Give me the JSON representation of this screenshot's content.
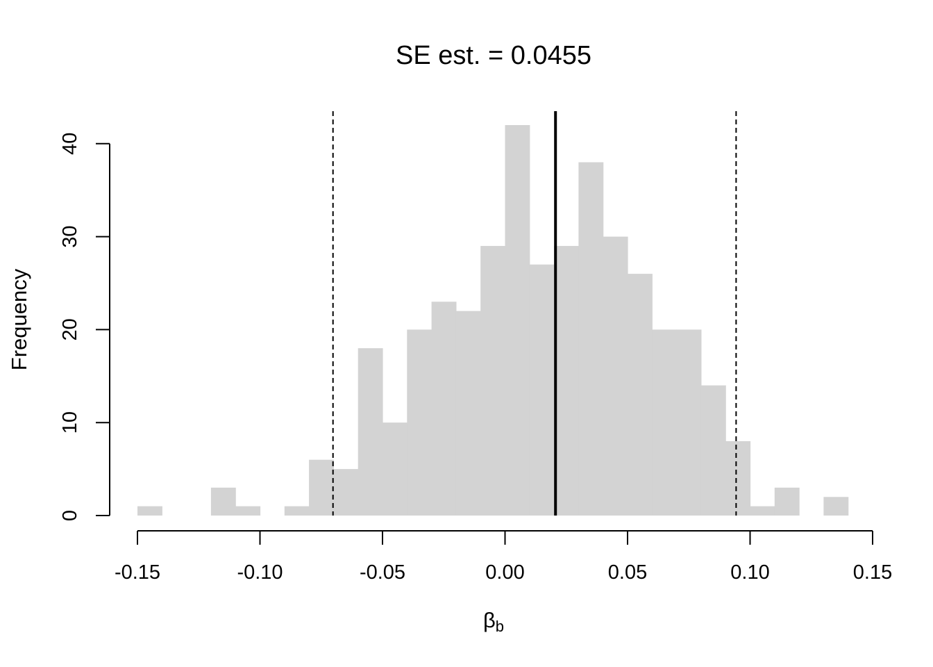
{
  "chart_data": {
    "type": "bar",
    "title": "SE est. = 0.0455",
    "xlabel_main": "β",
    "xlabel_sub": "b",
    "ylabel": "Frequency",
    "bar_color": "#d3d3d3",
    "bins": [
      {
        "from": -0.15,
        "to": -0.14,
        "count": 1
      },
      {
        "from": -0.14,
        "to": -0.13,
        "count": 0
      },
      {
        "from": -0.13,
        "to": -0.12,
        "count": 0
      },
      {
        "from": -0.12,
        "to": -0.11,
        "count": 3
      },
      {
        "from": -0.11,
        "to": -0.1,
        "count": 1
      },
      {
        "from": -0.1,
        "to": -0.09,
        "count": 0
      },
      {
        "from": -0.09,
        "to": -0.08,
        "count": 1
      },
      {
        "from": -0.08,
        "to": -0.07,
        "count": 6
      },
      {
        "from": -0.07,
        "to": -0.06,
        "count": 5
      },
      {
        "from": -0.06,
        "to": -0.05,
        "count": 18
      },
      {
        "from": -0.05,
        "to": -0.04,
        "count": 10
      },
      {
        "from": -0.04,
        "to": -0.03,
        "count": 20
      },
      {
        "from": -0.03,
        "to": -0.02,
        "count": 23
      },
      {
        "from": -0.02,
        "to": -0.01,
        "count": 22
      },
      {
        "from": -0.01,
        "to": 0.0,
        "count": 29
      },
      {
        "from": 0.0,
        "to": 0.01,
        "count": 42
      },
      {
        "from": 0.01,
        "to": 0.02,
        "count": 27
      },
      {
        "from": 0.02,
        "to": 0.03,
        "count": 29
      },
      {
        "from": 0.03,
        "to": 0.04,
        "count": 38
      },
      {
        "from": 0.04,
        "to": 0.05,
        "count": 30
      },
      {
        "from": 0.05,
        "to": 0.06,
        "count": 26
      },
      {
        "from": 0.06,
        "to": 0.07,
        "count": 20
      },
      {
        "from": 0.07,
        "to": 0.08,
        "count": 20
      },
      {
        "from": 0.08,
        "to": 0.09,
        "count": 14
      },
      {
        "from": 0.09,
        "to": 0.1,
        "count": 8
      },
      {
        "from": 0.1,
        "to": 0.11,
        "count": 1
      },
      {
        "from": 0.11,
        "to": 0.12,
        "count": 3
      },
      {
        "from": 0.12,
        "to": 0.13,
        "count": 0
      },
      {
        "from": 0.13,
        "to": 0.14,
        "count": 2
      }
    ],
    "reference_lines": [
      {
        "x": 0.0206,
        "style": "solid"
      },
      {
        "x": -0.0702,
        "style": "dashed"
      },
      {
        "x": 0.0943,
        "style": "dashed"
      }
    ],
    "xlim": [
      -0.15,
      0.15
    ],
    "ylim": [
      0,
      42
    ],
    "x_ticks": [
      -0.15,
      -0.1,
      -0.05,
      0.0,
      0.05,
      0.1,
      0.15
    ],
    "x_tick_labels": [
      "-0.15",
      "-0.10",
      "-0.05",
      "0.00",
      "0.05",
      "0.10",
      "0.15"
    ],
    "y_ticks": [
      0,
      10,
      20,
      30,
      40
    ],
    "y_tick_labels": [
      "0",
      "10",
      "20",
      "30",
      "40"
    ],
    "grid": false,
    "legend": "none"
  }
}
